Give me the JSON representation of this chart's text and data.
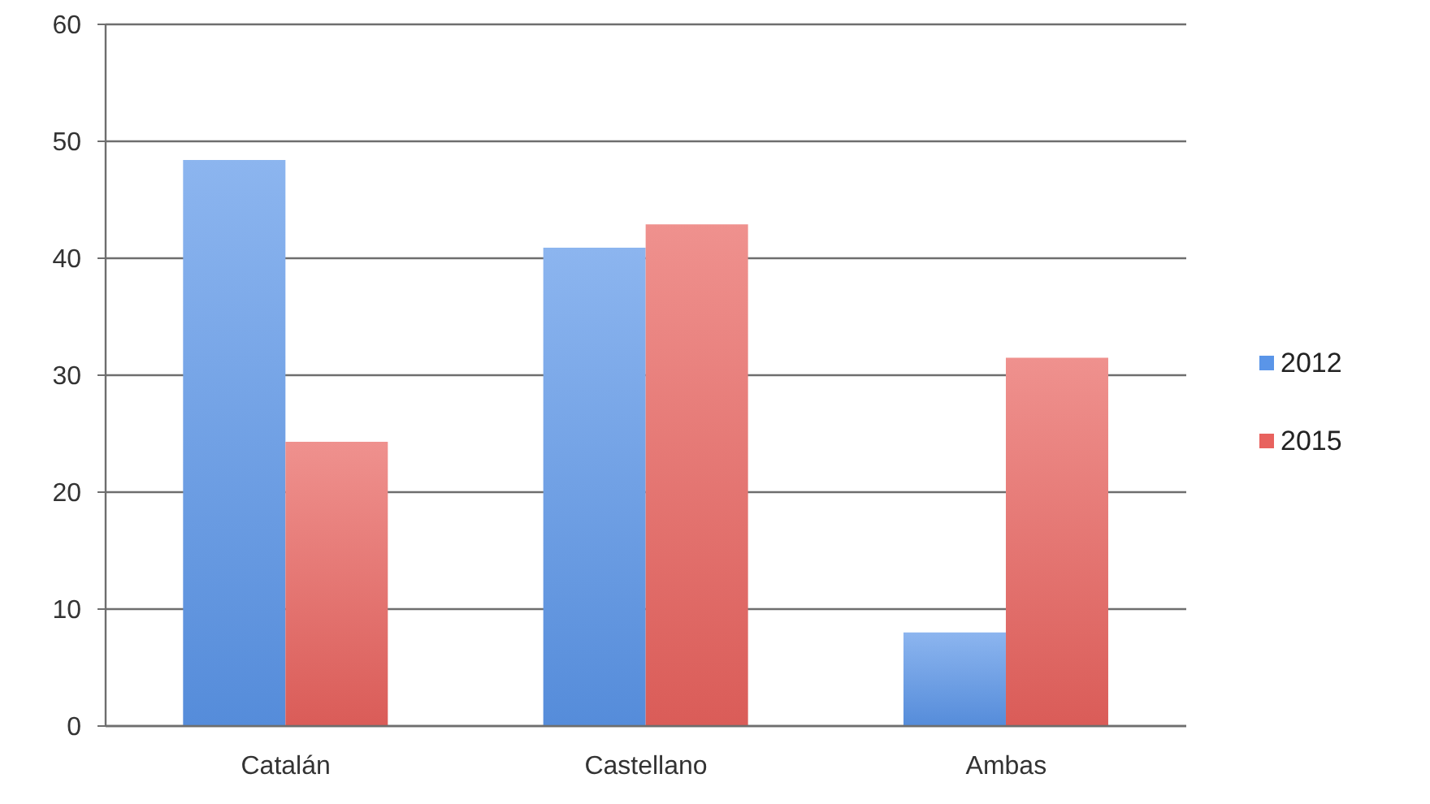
{
  "chart_data": {
    "type": "bar",
    "categories": [
      "Catalán",
      "Castellano",
      "Ambas"
    ],
    "series": [
      {
        "name": "2012",
        "color": "#5a95e8",
        "values": [
          48.4,
          40.9,
          8.0
        ]
      },
      {
        "name": "2015",
        "color": "#e8625e",
        "values": [
          24.3,
          42.9,
          31.5
        ]
      }
    ],
    "ylim": [
      0,
      60
    ],
    "yticks": [
      0,
      10,
      20,
      30,
      40,
      50,
      60
    ],
    "grid": "y",
    "legend": "right"
  }
}
